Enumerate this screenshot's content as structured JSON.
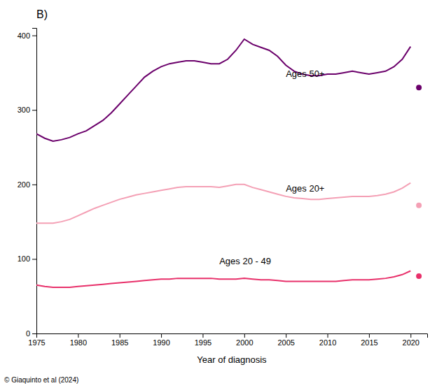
{
  "chart_data": {
    "type": "line",
    "title": "B)",
    "x_label": "Year of diagnosis",
    "footnote": "© Giaquinto et al (2024)",
    "xlim": [
      1975,
      2022
    ],
    "ylim": [
      0,
      410
    ],
    "xticks": [
      1975,
      1980,
      1985,
      1990,
      1995,
      2000,
      2005,
      2010,
      2015,
      2020
    ],
    "yticks": [
      0,
      100,
      200,
      300,
      400
    ],
    "series": [
      {
        "type": "line",
        "color": "#6B006B",
        "x": [
          1975,
          1976,
          1977,
          1978,
          1979,
          1980,
          1981,
          1982,
          1983,
          1984,
          1985,
          1986,
          1987,
          1988,
          1989,
          1990,
          1991,
          1992,
          1993,
          1994,
          1995,
          1996,
          1997,
          1998,
          1999,
          2000,
          2001,
          2002,
          2003,
          2004,
          2005,
          2006,
          2007,
          2008,
          2009,
          2010,
          2011,
          2012,
          2013,
          2014,
          2015,
          2016,
          2017,
          2018,
          2019,
          2020
        ],
        "values": [
          268,
          262,
          258,
          260,
          263,
          268,
          272,
          279,
          286,
          296,
          308,
          320,
          332,
          344,
          352,
          358,
          362,
          364,
          366,
          366,
          364,
          362,
          362,
          368,
          380,
          395,
          388,
          384,
          380,
          372,
          360,
          352,
          348,
          346,
          346,
          348,
          348,
          350,
          352,
          350,
          348,
          350,
          352,
          358,
          368,
          385
        ]
      },
      {
        "type": "line",
        "color": "#F4A0B5",
        "x": [
          1975,
          1976,
          1977,
          1978,
          1979,
          1980,
          1981,
          1982,
          1983,
          1984,
          1985,
          1986,
          1987,
          1988,
          1989,
          1990,
          1991,
          1992,
          1993,
          1994,
          1995,
          1996,
          1997,
          1998,
          1999,
          2000,
          2001,
          2002,
          2003,
          2004,
          2005,
          2006,
          2007,
          2008,
          2009,
          2010,
          2011,
          2012,
          2013,
          2014,
          2015,
          2016,
          2017,
          2018,
          2019,
          2020
        ],
        "values": [
          148,
          148,
          148,
          150,
          153,
          158,
          163,
          168,
          172,
          176,
          180,
          183,
          186,
          188,
          190,
          192,
          194,
          196,
          197,
          197,
          197,
          197,
          196,
          198,
          200,
          200,
          196,
          193,
          190,
          187,
          184,
          182,
          181,
          180,
          180,
          181,
          182,
          183,
          184,
          184,
          184,
          185,
          187,
          190,
          195,
          202
        ]
      },
      {
        "type": "line",
        "color": "#E8306A",
        "x": [
          1975,
          1976,
          1977,
          1978,
          1979,
          1980,
          1981,
          1982,
          1983,
          1984,
          1985,
          1986,
          1987,
          1988,
          1989,
          1990,
          1991,
          1992,
          1993,
          1994,
          1995,
          1996,
          1997,
          1998,
          1999,
          2000,
          2001,
          2002,
          2003,
          2004,
          2005,
          2006,
          2007,
          2008,
          2009,
          2010,
          2011,
          2012,
          2013,
          2014,
          2015,
          2016,
          2017,
          2018,
          2019,
          2020
        ],
        "values": [
          65,
          63,
          62,
          62,
          62,
          63,
          64,
          65,
          66,
          67,
          68,
          69,
          70,
          71,
          72,
          73,
          73,
          74,
          74,
          74,
          74,
          74,
          73,
          73,
          73,
          74,
          73,
          72,
          72,
          71,
          70,
          70,
          70,
          70,
          70,
          70,
          70,
          71,
          72,
          72,
          72,
          73,
          74,
          76,
          79,
          84
        ]
      },
      {
        "type": "scatter",
        "marker": "circle",
        "color": "#6B006B",
        "x": [
          2021
        ],
        "values": [
          330
        ]
      },
      {
        "type": "scatter",
        "marker": "circle",
        "color": "#F4A0B5",
        "x": [
          2021
        ],
        "values": [
          172
        ]
      },
      {
        "type": "scatter",
        "marker": "circle",
        "color": "#E8306A",
        "x": [
          2021
        ],
        "values": [
          77
        ]
      }
    ],
    "annotations": [
      {
        "text": "Ages 50+",
        "x": 2005,
        "y": 342
      },
      {
        "text": "Ages 20+",
        "x": 2005,
        "y": 188
      },
      {
        "text": "Ages 20 - 49",
        "x": 1997,
        "y": 90
      }
    ]
  }
}
